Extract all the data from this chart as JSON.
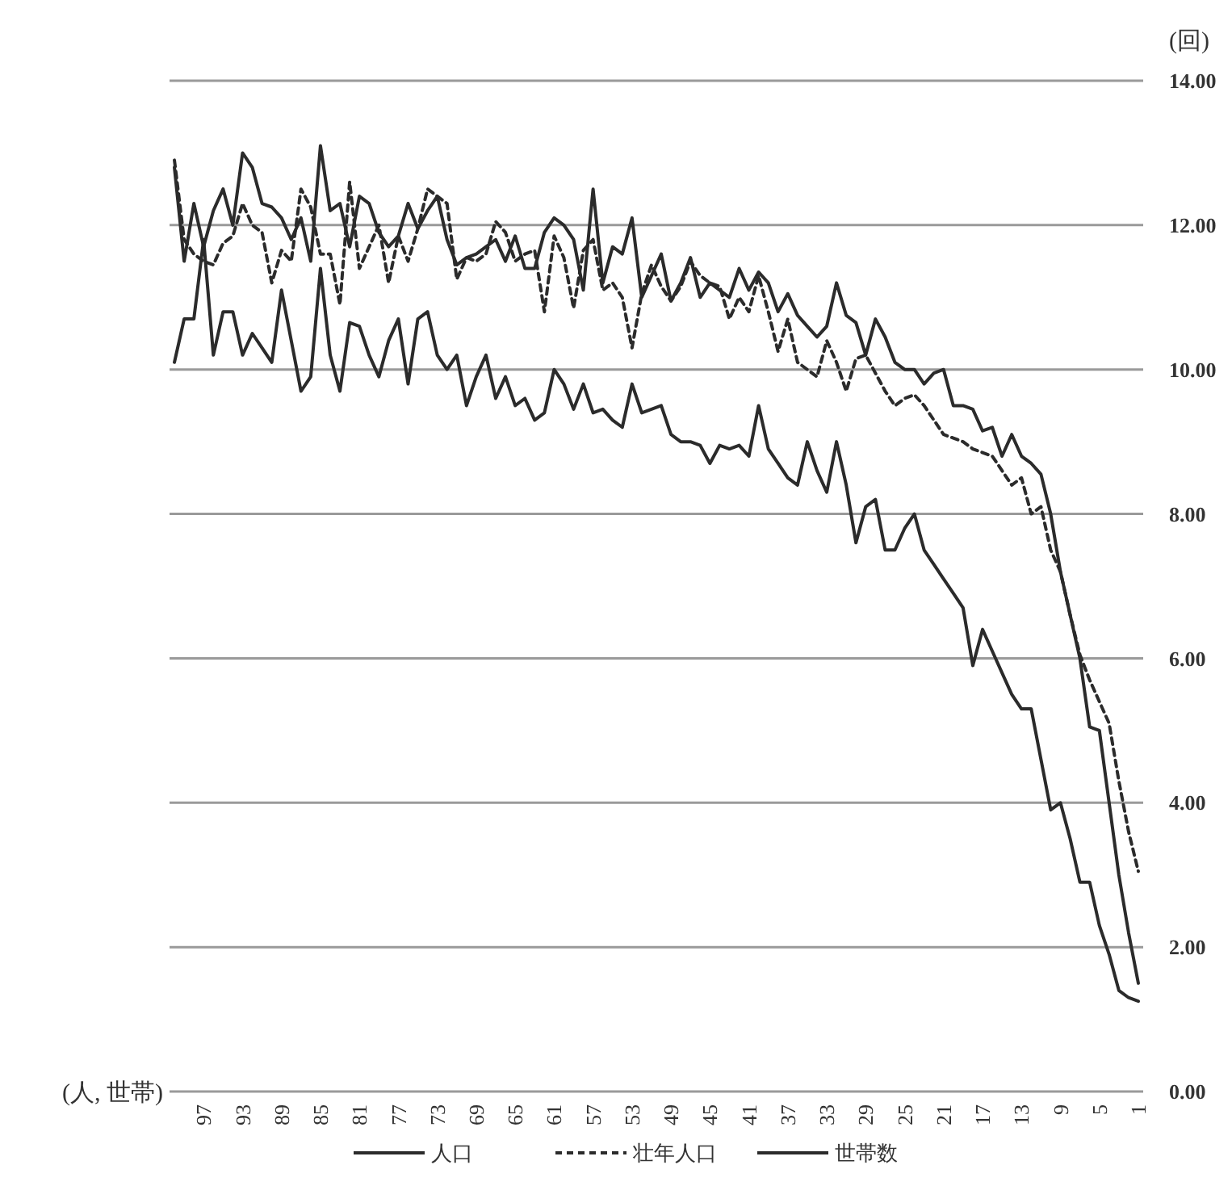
{
  "chart_data": {
    "type": "line",
    "xlabel": "(人, 世帯)",
    "ylabel": "(回)",
    "categories": [
      null,
      null,
      null,
      "97",
      null,
      null,
      null,
      "93",
      null,
      null,
      null,
      "89",
      null,
      null,
      null,
      "85",
      null,
      null,
      null,
      "81",
      null,
      null,
      null,
      "77",
      null,
      null,
      null,
      "73",
      null,
      null,
      null,
      "69",
      null,
      null,
      null,
      "65",
      null,
      null,
      null,
      "61",
      null,
      null,
      null,
      "57",
      null,
      null,
      null,
      "53",
      null,
      null,
      null,
      "49",
      null,
      null,
      null,
      "45",
      null,
      null,
      null,
      "41",
      null,
      null,
      null,
      "37",
      null,
      null,
      null,
      "33",
      null,
      null,
      null,
      "29",
      null,
      null,
      null,
      "25",
      null,
      null,
      null,
      "21",
      null,
      null,
      null,
      "17",
      null,
      null,
      null,
      "13",
      null,
      null,
      null,
      "9",
      null,
      null,
      null,
      "5",
      null,
      null,
      null,
      "1"
    ],
    "series": [
      {
        "name": "人口",
        "color": "#2b2b2b",
        "line_style": "solid",
        "values": [
          12.8,
          11.5,
          12.3,
          11.7,
          12.2,
          12.5,
          12.0,
          13.0,
          12.8,
          12.3,
          12.25,
          12.1,
          11.8,
          12.1,
          11.5,
          13.1,
          12.2,
          12.3,
          11.7,
          12.4,
          12.3,
          11.9,
          11.7,
          11.85,
          12.3,
          11.95,
          12.2,
          12.4,
          11.8,
          11.45,
          11.55,
          11.6,
          11.7,
          11.8,
          11.5,
          11.85,
          11.4,
          11.4,
          11.9,
          12.1,
          12.0,
          11.8,
          11.1,
          12.5,
          11.2,
          11.7,
          11.6,
          12.1,
          11.0,
          11.3,
          11.6,
          10.95,
          11.2,
          11.55,
          11.0,
          11.2,
          11.1,
          11.0,
          11.4,
          11.1,
          11.35,
          11.2,
          10.8,
          11.05,
          10.75,
          10.6,
          10.45,
          10.6,
          11.2,
          10.75,
          10.65,
          10.2,
          10.7,
          10.45,
          10.1,
          10.0,
          10.0,
          9.8,
          9.95,
          10.0,
          9.5,
          9.5,
          9.45,
          9.15,
          9.2,
          8.8,
          9.1,
          8.8,
          8.7,
          8.55,
          8.0,
          7.2,
          6.6,
          6.0,
          5.05,
          5.0,
          4.0,
          3.0,
          2.2,
          1.5
        ]
      },
      {
        "name": "壮年人口",
        "color": "#2b2b2b",
        "line_style": "dashed",
        "values": [
          12.9,
          11.8,
          11.6,
          11.5,
          11.45,
          11.75,
          11.85,
          12.3,
          12.0,
          11.9,
          11.2,
          11.65,
          11.5,
          12.5,
          12.25,
          11.6,
          11.6,
          10.9,
          12.6,
          11.4,
          11.7,
          12.0,
          11.2,
          11.85,
          11.5,
          11.95,
          12.5,
          12.4,
          12.3,
          11.25,
          11.55,
          11.5,
          11.6,
          12.05,
          11.9,
          11.5,
          11.6,
          11.65,
          10.8,
          11.85,
          11.55,
          10.85,
          11.65,
          11.8,
          11.1,
          11.2,
          11.0,
          10.3,
          11.05,
          11.45,
          11.15,
          10.95,
          11.15,
          11.5,
          11.3,
          11.2,
          11.15,
          10.7,
          11.0,
          10.8,
          11.3,
          10.8,
          10.25,
          10.7,
          10.1,
          10.0,
          9.9,
          10.4,
          10.1,
          9.7,
          10.15,
          10.2,
          9.95,
          9.7,
          9.5,
          9.6,
          9.65,
          9.5,
          9.3,
          9.1,
          9.05,
          9.0,
          8.9,
          8.85,
          8.8,
          8.6,
          8.4,
          8.5,
          8.0,
          8.1,
          7.5,
          7.2,
          6.6,
          6.05,
          5.7,
          5.4,
          5.1,
          4.3,
          3.6,
          3.05
        ]
      },
      {
        "name": "世帯数",
        "color": "#2b2b2b",
        "line_style": "solid",
        "values": [
          10.1,
          10.7,
          10.7,
          11.8,
          10.2,
          10.8,
          10.8,
          10.2,
          10.5,
          10.3,
          10.1,
          11.1,
          10.4,
          9.7,
          9.9,
          11.4,
          10.2,
          9.7,
          10.65,
          10.6,
          10.2,
          9.9,
          10.4,
          10.7,
          9.8,
          10.7,
          10.8,
          10.2,
          10.0,
          10.2,
          9.5,
          9.9,
          10.2,
          9.6,
          9.9,
          9.5,
          9.6,
          9.3,
          9.4,
          10.0,
          9.8,
          9.45,
          9.8,
          9.4,
          9.45,
          9.3,
          9.2,
          9.8,
          9.4,
          9.45,
          9.5,
          9.1,
          9.0,
          9.0,
          8.95,
          8.7,
          8.95,
          8.9,
          8.95,
          8.8,
          9.5,
          8.9,
          8.7,
          8.5,
          8.4,
          9.0,
          8.6,
          8.3,
          9.0,
          8.4,
          7.6,
          8.1,
          8.2,
          7.5,
          7.5,
          7.8,
          8.0,
          7.5,
          7.3,
          7.1,
          6.9,
          6.7,
          5.9,
          6.4,
          6.1,
          5.8,
          5.5,
          5.3,
          5.3,
          4.6,
          3.9,
          4.0,
          3.5,
          2.9,
          2.9,
          2.3,
          1.9,
          1.4,
          1.3,
          1.25
        ]
      }
    ],
    "ylim": [
      0,
      14
    ],
    "yticks": [
      {
        "value": 0,
        "label": "0.00"
      },
      {
        "value": 2,
        "label": "2.00"
      },
      {
        "value": 4,
        "label": "4.00"
      },
      {
        "value": 6,
        "label": "6.00"
      },
      {
        "value": 8,
        "label": "8.00"
      },
      {
        "value": 10,
        "label": "10.00"
      },
      {
        "value": 12,
        "label": "12.00"
      },
      {
        "value": 14,
        "label": "14.00"
      }
    ],
    "grid": "y",
    "legend": "bottom"
  }
}
